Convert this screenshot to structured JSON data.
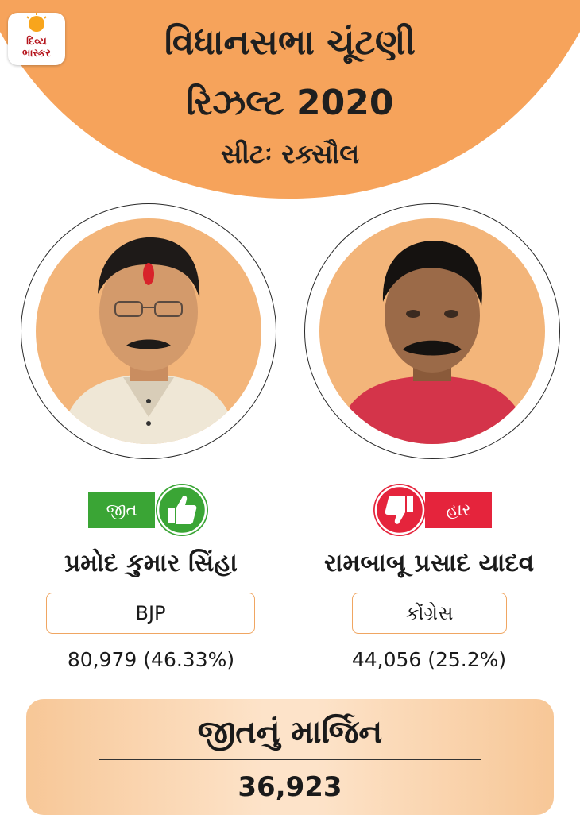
{
  "brand": {
    "logo_line1": "દિવ્ય",
    "logo_line2": "ભાસ્કર"
  },
  "header": {
    "title_line1": "વિધાનસભા ચૂંટણી",
    "title_line2": "રિઝલ્ટ 2020",
    "seat": "સીટઃ રક્સૌલ"
  },
  "colors": {
    "header_bg": "#f6a35b",
    "win_green": "#3aa535",
    "loss_red": "#e5243c",
    "border_orange": "#f0a662"
  },
  "candidates": [
    {
      "status": "જીત",
      "status_icon": "thumbs-up-icon",
      "name": "પ્રમોદ કુમાર સિંહા",
      "party": "BJP",
      "votes": "80,979 (46.33%)"
    },
    {
      "status": "હાર",
      "status_icon": "thumbs-down-icon",
      "name": "રામબાબૂ પ્રસાદ યાદવ",
      "party": "કોંગ્રેસ",
      "votes": "44,056 (25.2%)"
    }
  ],
  "margin": {
    "label": "જીતનું માર્જિન",
    "value": "36,923"
  }
}
